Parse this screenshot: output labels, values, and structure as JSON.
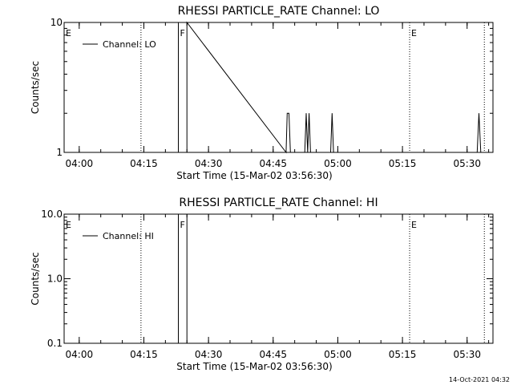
{
  "chart_data": [
    {
      "type": "line",
      "title": "RHESSI PARTICLE_RATE Channel: LO",
      "xlabel": "Start Time (15-Mar-02 03:56:30)",
      "ylabel": "Counts/sec",
      "yscale": "log",
      "ylim": [
        1,
        10
      ],
      "xlim": [
        "03:56:30",
        "05:36:00"
      ],
      "yticks": [
        "1",
        "10"
      ],
      "xticks": [
        "04:00",
        "04:15",
        "04:30",
        "04:45",
        "05:00",
        "05:15",
        "05:30"
      ],
      "legend": {
        "position": "top-left",
        "entries": [
          "Channel: LO"
        ]
      },
      "series": [
        {
          "name": "Channel: LO",
          "color": "#000000",
          "points": [
            [
              "04:23:00",
              10
            ],
            [
              "04:23:00",
              1
            ],
            [
              "04:25:00",
              1
            ],
            [
              "04:25:00",
              10
            ],
            [
              "04:48:00",
              1
            ],
            [
              "04:48:15",
              2
            ],
            [
              "04:48:40",
              2
            ],
            [
              "04:49:00",
              1
            ],
            [
              "04:52:20",
              1
            ],
            [
              "04:52:40",
              2
            ],
            [
              "04:53:00",
              1
            ],
            [
              "04:53:20",
              2
            ],
            [
              "04:53:40",
              1
            ],
            [
              "04:58:20",
              1
            ],
            [
              "04:58:40",
              2
            ],
            [
              "04:59:00",
              1
            ],
            [
              "05:32:20",
              1
            ],
            [
              "05:32:45",
              2
            ],
            [
              "05:33:10",
              1
            ]
          ]
        }
      ],
      "markers": [
        {
          "label": "E",
          "time": "03:56:30",
          "line": false
        },
        {
          "label": "",
          "time": "04:14:20",
          "line": true
        },
        {
          "label": "F",
          "time": "04:23:00",
          "line": false
        },
        {
          "label": "E",
          "time": "05:16:40",
          "line": true
        },
        {
          "label": "",
          "time": "05:34:00",
          "line": true
        }
      ]
    },
    {
      "type": "line",
      "title": "RHESSI PARTICLE_RATE Channel: HI",
      "xlabel": "Start Time (15-Mar-02 03:56:30)",
      "ylabel": "Counts/sec",
      "yscale": "log",
      "ylim": [
        0.1,
        10
      ],
      "xlim": [
        "03:56:30",
        "05:36:00"
      ],
      "yticks": [
        "0.1",
        "1.0",
        "10.0"
      ],
      "xticks": [
        "04:00",
        "04:15",
        "04:30",
        "04:45",
        "05:00",
        "05:15",
        "05:30"
      ],
      "legend": {
        "position": "top-left",
        "entries": [
          "Channel: HI"
        ]
      },
      "series": [
        {
          "name": "Channel: HI",
          "color": "#000000",
          "points": [
            [
              "04:23:00",
              10
            ],
            [
              "04:23:00",
              0.1
            ],
            [
              "04:25:00",
              0.1
            ],
            [
              "04:25:00",
              10
            ]
          ]
        }
      ],
      "markers": [
        {
          "label": "E",
          "time": "03:56:30",
          "line": false
        },
        {
          "label": "",
          "time": "04:14:20",
          "line": true
        },
        {
          "label": "F",
          "time": "04:23:00",
          "line": false
        },
        {
          "label": "E",
          "time": "05:16:40",
          "line": true
        },
        {
          "label": "",
          "time": "05:34:00",
          "line": true
        }
      ]
    }
  ],
  "timestamp": "14-Oct-2021 04:32"
}
